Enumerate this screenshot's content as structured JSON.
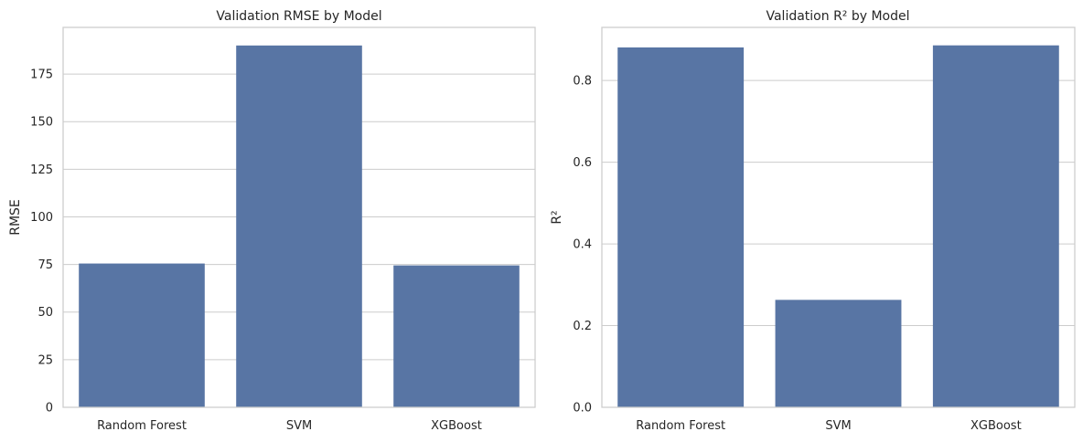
{
  "chart_data": [
    {
      "type": "bar",
      "title": "Validation RMSE by Model",
      "xlabel": "",
      "ylabel": "RMSE",
      "categories": [
        "Random Forest",
        "SVM",
        "XGBoost"
      ],
      "values": [
        75.5,
        190.0,
        74.5
      ],
      "ylim": [
        0,
        199.5
      ],
      "yticks": [
        0,
        25,
        50,
        75,
        100,
        125,
        150,
        175
      ],
      "ytick_labels": [
        "0",
        "25",
        "50",
        "75",
        "100",
        "125",
        "150",
        "175"
      ],
      "grid": "horizontal",
      "color": "#5875a4"
    },
    {
      "type": "bar",
      "title": "Validation R² by Model",
      "xlabel": "",
      "ylabel": "R²",
      "categories": [
        "Random Forest",
        "SVM",
        "XGBoost"
      ],
      "values": [
        0.881,
        0.263,
        0.886
      ],
      "ylim": [
        0,
        0.93
      ],
      "yticks": [
        0,
        0.2,
        0.4,
        0.6,
        0.8
      ],
      "ytick_labels": [
        "0.0",
        "0.2",
        "0.4",
        "0.6",
        "0.8"
      ],
      "grid": "horizontal",
      "color": "#5875a4"
    }
  ]
}
